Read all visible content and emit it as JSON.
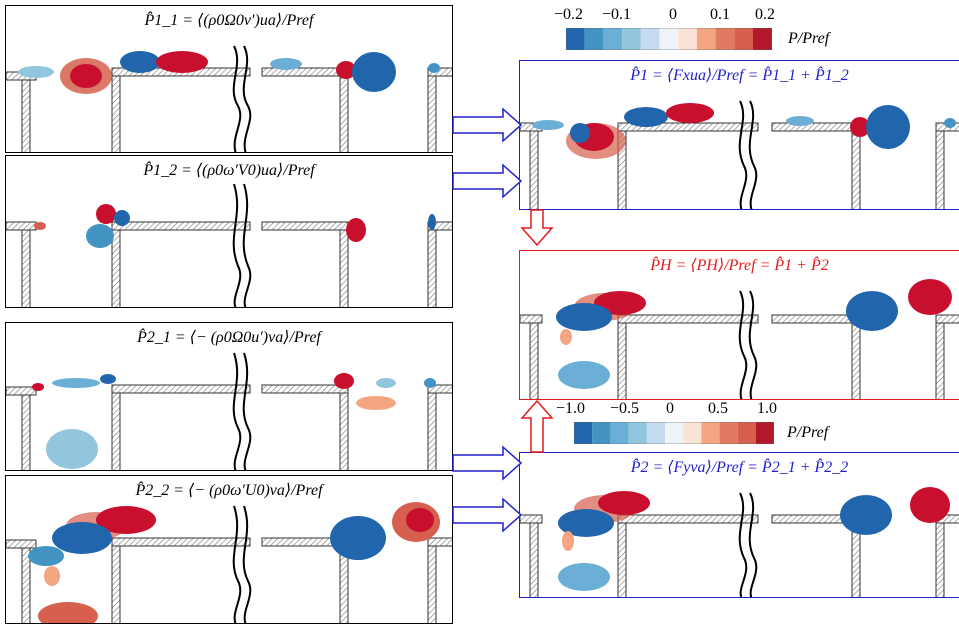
{
  "left_panels": [
    {
      "title": "P̂1_1 = ⟨(ρ0Ω0v′)ua⟩/Pref"
    },
    {
      "title": "P̂1_2 = ⟨(ρ0ω′V0)ua⟩/Pref"
    },
    {
      "title": "P̂2_1 = ⟨− (ρ0Ω0u′)va⟩/Pref"
    },
    {
      "title": "P̂2_2 = ⟨− (ρ0ω′U0)va⟩/Pref"
    }
  ],
  "right_panels": [
    {
      "title": "P̂1 = ⟨Fxua⟩/Pref = P̂1_1 + P̂1_2",
      "color": "#1f1fcc"
    },
    {
      "title": "P̂H = ⟨PH⟩/Pref = P̂1 + P̂2",
      "color": "#e41a1c"
    },
    {
      "title": "P̂2 = ⟨Fyva⟩/Pref = P̂2_1 + P̂2_2",
      "color": "#1f1fcc"
    }
  ],
  "colorbar_top": {
    "ticks": [
      "−0.2",
      "−0.1",
      "0",
      "0.1",
      "0.2"
    ],
    "label": "P/Pref"
  },
  "colorbar_bottom": {
    "ticks": [
      "−1.0",
      "−0.5",
      "0",
      "0.5",
      "1.0"
    ],
    "label": "P/Pref"
  },
  "colors": {
    "positive": "#c8102e",
    "negative": "#2166ac",
    "panel_blue": "#1f1fcc",
    "panel_red": "#e41a1c",
    "scale": [
      "#2166ac",
      "#4393c3",
      "#6baed6",
      "#92c5de",
      "#c6dbef",
      "#eef3f8",
      "#fbe3d6",
      "#f4a582",
      "#e07b61",
      "#d6604d",
      "#b2182b"
    ]
  }
}
